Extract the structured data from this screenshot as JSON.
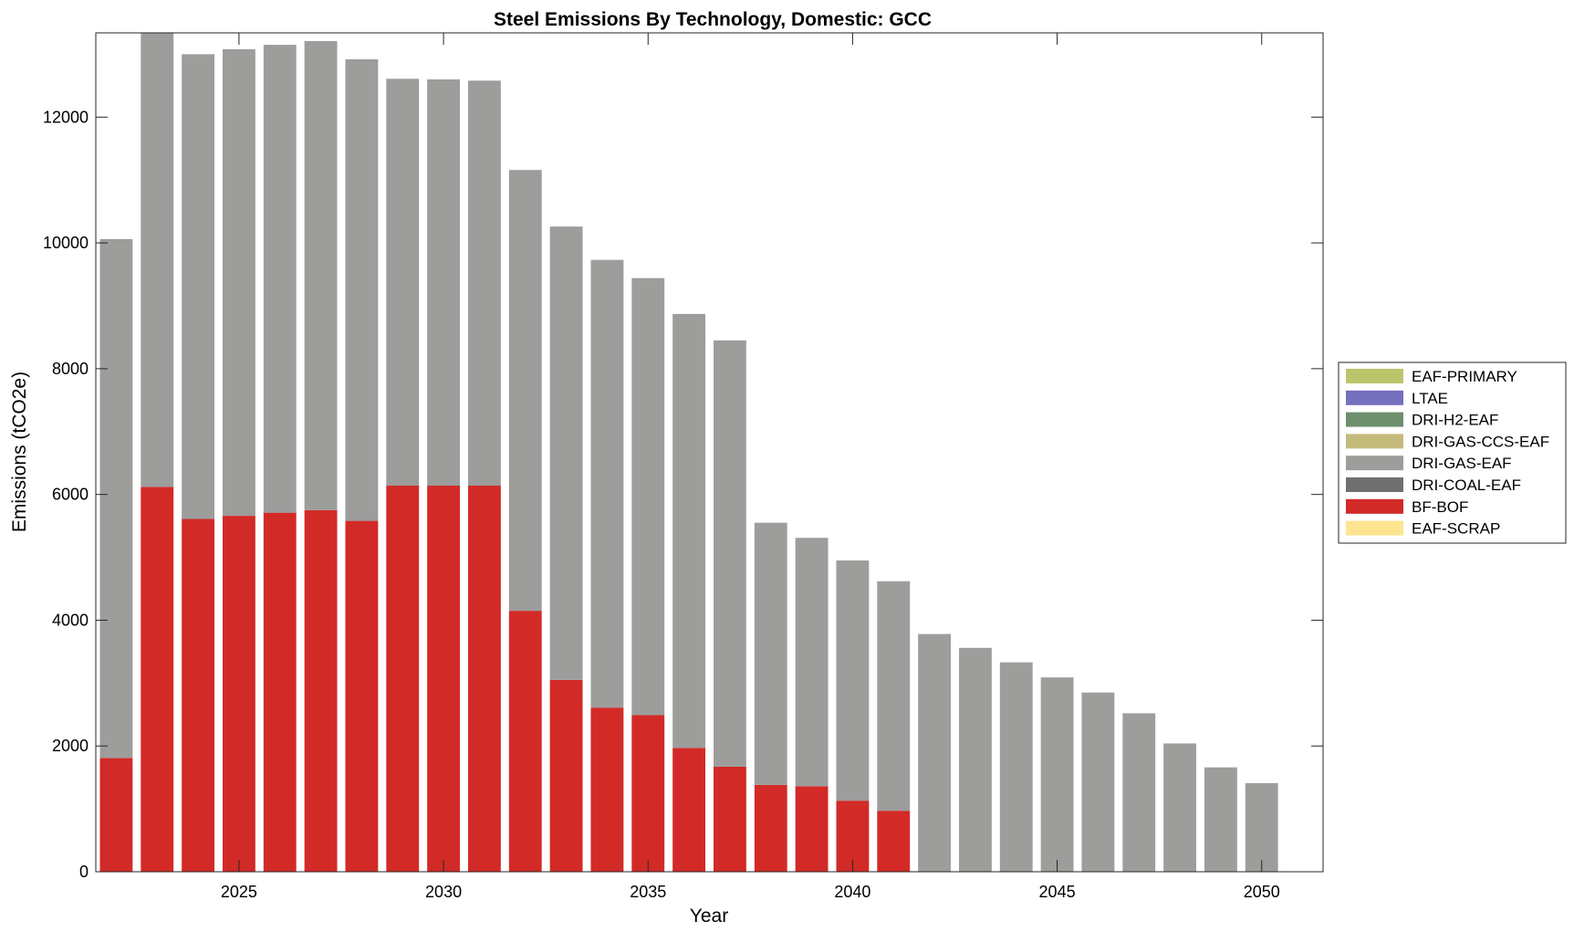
{
  "chart_data": {
    "type": "bar",
    "stacked": true,
    "title": "Steel Emissions By Technology, Domestic: GCC",
    "xlabel": "Year",
    "ylabel": "Emissions (tCO2e)",
    "xlim": [
      2021.5,
      2051.5
    ],
    "ylim": [
      0,
      13340
    ],
    "xticks": [
      2025,
      2030,
      2035,
      2040,
      2045,
      2050
    ],
    "yticks": [
      0,
      2000,
      4000,
      6000,
      8000,
      10000,
      12000
    ],
    "grid": false,
    "legend_position": "right",
    "categories": [
      2022,
      2023,
      2024,
      2025,
      2026,
      2027,
      2028,
      2029,
      2030,
      2031,
      2032,
      2033,
      2034,
      2035,
      2036,
      2037,
      2038,
      2039,
      2040,
      2041,
      2042,
      2043,
      2044,
      2045,
      2046,
      2047,
      2048,
      2049,
      2050
    ],
    "series": [
      {
        "name": "EAF-PRIMARY",
        "color": "#bcc56b",
        "values": [
          0,
          0,
          0,
          0,
          0,
          0,
          0,
          0,
          0,
          0,
          0,
          0,
          0,
          0,
          0,
          0,
          0,
          0,
          0,
          0,
          0,
          0,
          0,
          0,
          0,
          0,
          0,
          0,
          0
        ]
      },
      {
        "name": "LTAE",
        "color": "#7570bf",
        "values": [
          0,
          0,
          0,
          0,
          0,
          0,
          0,
          0,
          0,
          0,
          0,
          0,
          0,
          0,
          0,
          0,
          0,
          0,
          0,
          0,
          0,
          0,
          0,
          0,
          0,
          0,
          0,
          0,
          0
        ]
      },
      {
        "name": "DRI-H2-EAF",
        "color": "#6d8f6e",
        "values": [
          0,
          0,
          0,
          0,
          0,
          0,
          0,
          0,
          0,
          0,
          0,
          0,
          0,
          0,
          0,
          0,
          0,
          0,
          0,
          0,
          0,
          0,
          0,
          0,
          0,
          0,
          0,
          0,
          0
        ]
      },
      {
        "name": "DRI-GAS-CCS-EAF",
        "color": "#c4ba7c",
        "values": [
          0,
          0,
          0,
          0,
          0,
          0,
          0,
          0,
          0,
          0,
          0,
          0,
          0,
          0,
          0,
          0,
          0,
          0,
          0,
          0,
          0,
          0,
          0,
          0,
          0,
          0,
          0,
          0,
          0
        ]
      },
      {
        "name": "DRI-GAS-EAF",
        "color": "#9d9d9c",
        "values": [
          8250,
          7220,
          7390,
          7420,
          7440,
          7460,
          7340,
          6470,
          6460,
          6440,
          7010,
          7210,
          7120,
          6950,
          6900,
          6780,
          4170,
          3950,
          3820,
          3650,
          3780,
          3560,
          3330,
          3090,
          2850,
          2520,
          2040,
          1660,
          1410
        ]
      },
      {
        "name": "DRI-COAL-EAF",
        "color": "#707070",
        "values": [
          0,
          0,
          0,
          0,
          0,
          0,
          0,
          0,
          0,
          0,
          0,
          0,
          0,
          0,
          0,
          0,
          0,
          0,
          0,
          0,
          0,
          0,
          0,
          0,
          0,
          0,
          0,
          0,
          0
        ]
      },
      {
        "name": "BF-BOF",
        "color": "#d22a27",
        "values": [
          1810,
          6120,
          5610,
          5660,
          5710,
          5750,
          5580,
          6140,
          6140,
          6140,
          4150,
          3050,
          2610,
          2490,
          1970,
          1670,
          1380,
          1360,
          1130,
          970,
          0,
          0,
          0,
          0,
          0,
          0,
          0,
          0,
          0
        ]
      },
      {
        "name": "EAF-SCRAP",
        "color": "#fde490",
        "values": [
          0,
          0,
          0,
          0,
          0,
          0,
          0,
          0,
          0,
          0,
          0,
          0,
          0,
          0,
          0,
          0,
          0,
          0,
          0,
          0,
          0,
          0,
          0,
          0,
          0,
          0,
          0,
          0,
          0
        ]
      }
    ]
  }
}
